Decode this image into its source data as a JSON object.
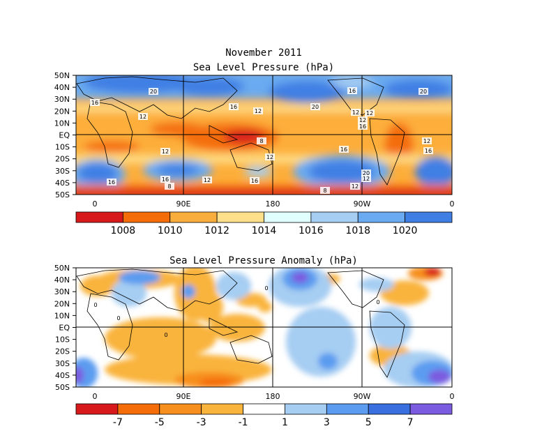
{
  "title_line1": "November 2011",
  "slp": {
    "title": "Sea Level Pressure (hPa)",
    "lat_labels": [
      "50N",
      "40N",
      "30N",
      "20N",
      "10N",
      "EQ",
      "10S",
      "20S",
      "30S",
      "40S",
      "50S"
    ],
    "lon_labels": [
      "0",
      "90E",
      "180",
      "90W",
      "0"
    ],
    "colorbar": {
      "colors": [
        "#d7191c",
        "#f46d08",
        "#f9ad3d",
        "#fee08b",
        "#e0ffff",
        "#a6cdf2",
        "#6aaaf0",
        "#3f7fe4"
      ],
      "labels": [
        "1008",
        "1010",
        "1012",
        "1014",
        "1016",
        "1018",
        "1020"
      ]
    },
    "contour_labels": [
      {
        "text": "20"
      },
      {
        "text": "16"
      },
      {
        "text": "12"
      },
      {
        "text": "16"
      },
      {
        "text": "12"
      },
      {
        "text": "20"
      },
      {
        "text": "16"
      },
      {
        "text": "12"
      },
      {
        "text": "20"
      },
      {
        "text": "12"
      },
      {
        "text": "8"
      },
      {
        "text": "12"
      },
      {
        "text": "16"
      },
      {
        "text": "12"
      },
      {
        "text": "16"
      },
      {
        "text": "12"
      },
      {
        "text": "16"
      },
      {
        "text": "8"
      },
      {
        "text": "12"
      },
      {
        "text": "16"
      },
      {
        "text": "12"
      },
      {
        "text": "20"
      },
      {
        "text": "8"
      },
      {
        "text": "12"
      },
      {
        "text": "16"
      },
      {
        "text": "12"
      },
      {
        "text": "16"
      }
    ]
  },
  "anom": {
    "title": "Sea Level Pressure Anomaly (hPa)",
    "lat_labels": [
      "50N",
      "40N",
      "30N",
      "20N",
      "10N",
      "EQ",
      "10S",
      "20S",
      "30S",
      "40S",
      "50S"
    ],
    "lon_labels": [
      "0",
      "90E",
      "180",
      "90W",
      "0"
    ],
    "colorbar": {
      "colors": [
        "#d7191c",
        "#f46d08",
        "#f78f1f",
        "#f9b43d",
        "#ffffff",
        "#a6cdf2",
        "#5b9cf0",
        "#3a6fe0",
        "#7b5be0"
      ],
      "labels": [
        "-7",
        "-5",
        "-3",
        "-1",
        "1",
        "3",
        "5",
        "7"
      ]
    },
    "contour_labels": [
      {
        "text": "0"
      },
      {
        "text": "0"
      },
      {
        "text": "0"
      },
      {
        "text": "0"
      },
      {
        "text": "0"
      }
    ]
  }
}
